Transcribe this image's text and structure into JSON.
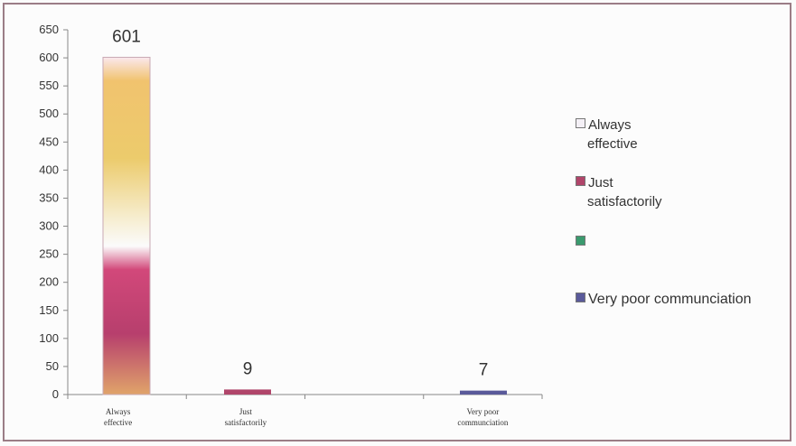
{
  "chart_data": {
    "type": "bar",
    "categories": [
      "Always effective",
      "Just satisfactorily",
      "",
      "Very poor communciation"
    ],
    "category_tick_lines": [
      [
        "Always",
        "effective"
      ],
      [
        "Just",
        "satisfactorily"
      ],
      [
        ""
      ],
      [
        "Very poor",
        "communciation"
      ]
    ],
    "values": [
      601,
      9,
      null,
      7
    ],
    "data_labels": [
      "601",
      "9",
      "",
      "7"
    ],
    "ylim": [
      0,
      650
    ],
    "yticks": [
      0,
      50,
      100,
      150,
      200,
      250,
      300,
      350,
      400,
      450,
      500,
      550,
      600,
      650
    ],
    "grid": false,
    "legend_position": "right",
    "colors": [
      "#e8c46a",
      "#b0456a",
      "#3a9a6e",
      "#5a5a9a"
    ]
  },
  "legend": {
    "items": [
      {
        "label_lines": [
          "Always",
          "effective"
        ],
        "color": "#f4f0f6"
      },
      {
        "label_lines": [
          "Just",
          "satisfactorily"
        ],
        "color": "#b0456a"
      },
      {
        "label_lines": [
          ""
        ],
        "color": "#3a9a6e"
      },
      {
        "label_lines": [
          "Very poor communciation"
        ],
        "color": "#5a5a9a"
      }
    ]
  }
}
